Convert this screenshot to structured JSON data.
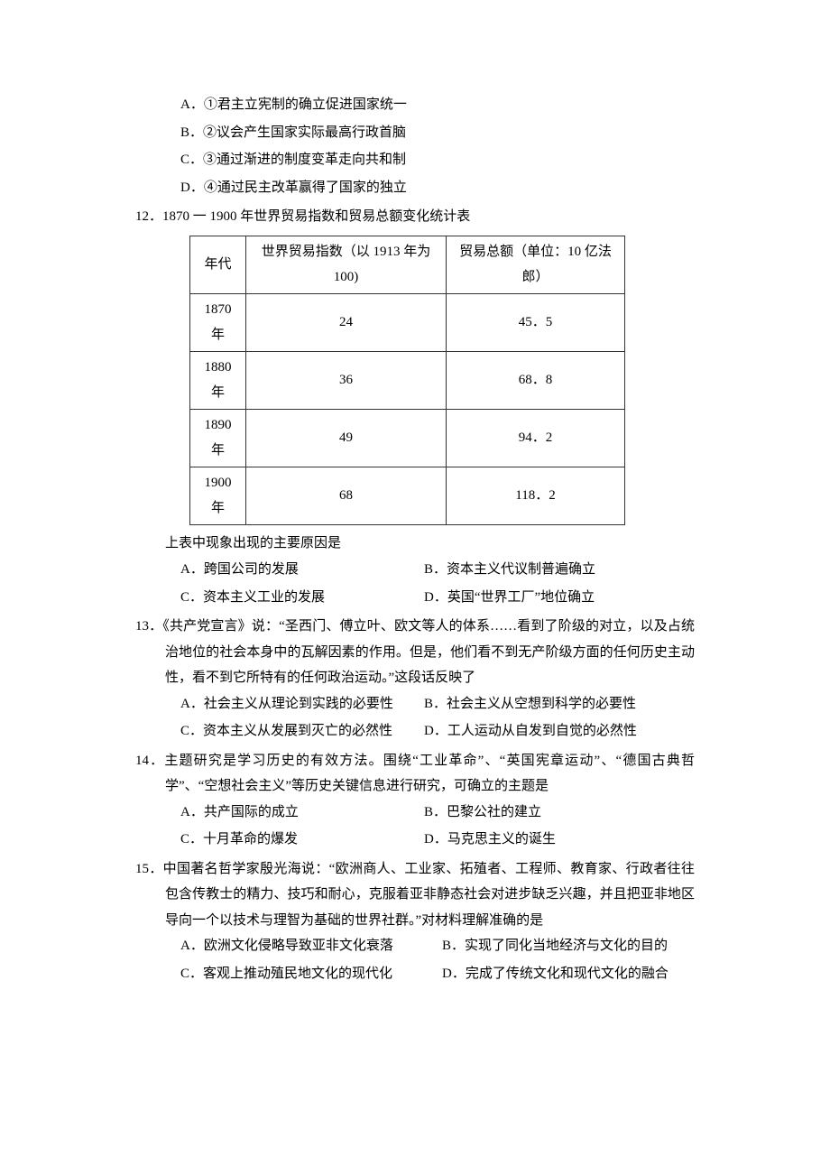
{
  "q11": {
    "options": {
      "a": "A．①君主立宪制的确立促进国家统一",
      "b": "B．②议会产生国家实际最高行政首脑",
      "c": "C．③通过渐进的制度变革走向共和制",
      "d": "D．④通过民主改革赢得了国家的独立"
    }
  },
  "q12": {
    "num": "12．",
    "stem": "1870 一 1900 年世界贸易指数和贸易总额变化统计表",
    "table": {
      "headers": {
        "year": "年代",
        "index": "世界贸易指数（以 1913 年为 100)",
        "total": "贸易总额（单位：10 亿法郎）"
      },
      "rows": [
        {
          "year": "1870 年",
          "index": "24",
          "total": "45．5"
        },
        {
          "year": "1880 年",
          "index": "36",
          "total": "68．8"
        },
        {
          "year": "1890 年",
          "index": "49",
          "total": "94．2"
        },
        {
          "year": "1900 年",
          "index": "68",
          "total": "118．2"
        }
      ]
    },
    "prompt": "上表中现象出现的主要原因是",
    "options": {
      "a": "A．跨国公司的发展",
      "b": "B．资本主义代议制普遍确立",
      "c": "C．资本主义工业的发展",
      "d": "D．英国“世界工厂”地位确立"
    }
  },
  "q13": {
    "num": "13．",
    "stem": "《共产党宣言》说：“圣西门、傅立叶、欧文等人的体系……看到了阶级的对立，以及占统治地位的社会本身中的瓦解因素的作用。但是，他们看不到无产阶级方面的任何历史主动性，看不到它所特有的任何政治运动。”这段话反映了",
    "options": {
      "a": "A．社会主义从理论到实践的必要性",
      "b": "B．社会主义从空想到科学的必要性",
      "c": "C．资本主义从发展到灭亡的必然性",
      "d": "D．工人运动从自发到自觉的必然性"
    }
  },
  "q14": {
    "num": "14．",
    "stem": "主题研究是学习历史的有效方法。围绕“工业革命”、“英国宪章运动”、“德国古典哲学”、“空想社会主义”等历史关键信息进行研究，可确立的主题是",
    "options": {
      "a": "A．共产国际的成立",
      "b": "B．巴黎公社的建立",
      "c": "C．十月革命的爆发",
      "d": "D．马克思主义的诞生"
    }
  },
  "q15": {
    "num": "15．",
    "stem": "中国著名哲学家殷光海说：“欧洲商人、工业家、拓殖者、工程师、教育家、行政者往往包含传教士的精力、技巧和耐心，克服着亚非静态社会对进步缺乏兴趣，并且把亚非地区导向一个以技术与理智为基础的世界社群。”对材料理解准确的是",
    "options": {
      "a": "A．欧洲文化侵略导致亚非文化衰落",
      "b": "B．实现了同化当地经济与文化的目的",
      "c": "C．客观上推动殖民地文化的现代化",
      "d": "D．完成了传统文化和现代文化的融合"
    }
  }
}
